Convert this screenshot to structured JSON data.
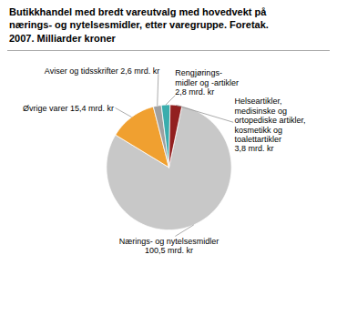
{
  "chart_data": {
    "type": "pie",
    "title": "Butikkhandel med bredt vareutvalg med hovedvekt på\nnærings- og nytelsesmidler, etter varegruppe. Foretak.\n2007. Milliarder kroner",
    "categories": [
      "Nærings- og nytelsesmidler\n100,5 mrd. kr",
      "Øvrige varer 15,4 mrd. kr",
      "Aviser og tidsskrifter 2,6 mrd. kr",
      "Rengjørings-\nmidler og -artikler\n2,8 mrd. kr",
      "Helseartikler,\nmedisinske og\nortopediske artikler,\nkosmetikk og\ntoalettartikler\n3,8 mrd. kr"
    ],
    "values": [
      100.5,
      15.4,
      2.6,
      2.8,
      3.8
    ],
    "colors": [
      "#c8c8c8",
      "#f0a030",
      "#a0a0a0",
      "#3aadad",
      "#922020"
    ]
  }
}
